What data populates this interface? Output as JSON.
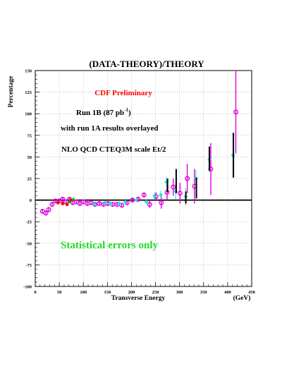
{
  "chart_data": {
    "type": "scatter",
    "title": "(DATA-THEORY)/THEORY",
    "xlabel": "Transverse Energy",
    "xunit": "(GeV)",
    "ylabel": "Percentage",
    "xlim": [
      0,
      450
    ],
    "ylim": [
      -100,
      150
    ],
    "x_ticks": [
      "0",
      "50",
      "100",
      "150",
      "200",
      "250",
      "300",
      "350",
      "400",
      "450"
    ],
    "y_ticks": [
      "150",
      "125",
      "100",
      "75",
      "50",
      "25",
      "0",
      "-25",
      "-50",
      "-75",
      "-100"
    ],
    "grid": true,
    "zero_line": true,
    "annotations": {
      "preliminary": "CDF Preliminary",
      "run_prefix": "Run 1B (87 pb",
      "run_exp": "-1",
      "run_suffix": ")",
      "overlay": "with run 1A results overlayed",
      "theory": "NLO QCD CTEQ3M  scale Et/2",
      "errors": "Statistical errors  only"
    },
    "colors": {
      "run1b": "#000000",
      "run1a": "#dd00dd",
      "cyan_points": "#22dddd",
      "red_points": "#ff0000",
      "green_points": "#00aa00",
      "preliminary_text": "#ff0000",
      "errors_text": "#22dd22"
    },
    "series": [
      {
        "marker": "open-circle",
        "color": "#dd00dd",
        "points": [
          {
            "x": 15,
            "y": -13,
            "err": 2
          },
          {
            "x": 22,
            "y": -15,
            "err": 3
          },
          {
            "x": 28,
            "y": -11,
            "err": 3
          },
          {
            "x": 35,
            "y": -5,
            "err": 2
          },
          {
            "x": 42,
            "y": -1,
            "err": 2
          },
          {
            "x": 50,
            "y": -1,
            "err": 2
          },
          {
            "x": 57,
            "y": 1,
            "err": 2
          },
          {
            "x": 64,
            "y": -2,
            "err": 2
          },
          {
            "x": 71,
            "y": 1,
            "err": 2
          },
          {
            "x": 78,
            "y": -3,
            "err": 2
          },
          {
            "x": 86,
            "y": -2,
            "err": 2
          },
          {
            "x": 93,
            "y": -4,
            "err": 2
          },
          {
            "x": 100,
            "y": -2,
            "err": 2
          },
          {
            "x": 108,
            "y": -4,
            "err": 2
          },
          {
            "x": 116,
            "y": -3,
            "err": 2
          },
          {
            "x": 124,
            "y": -5,
            "err": 2
          },
          {
            "x": 133,
            "y": -4,
            "err": 2
          },
          {
            "x": 142,
            "y": -5,
            "err": 2
          },
          {
            "x": 151,
            "y": -4,
            "err": 2
          },
          {
            "x": 161,
            "y": -5,
            "err": 2
          },
          {
            "x": 170,
            "y": -5,
            "err": 2
          },
          {
            "x": 180,
            "y": -6,
            "err": 2
          },
          {
            "x": 191,
            "y": -3,
            "err": 2
          },
          {
            "x": 202,
            "y": 0,
            "err": 3
          },
          {
            "x": 214,
            "y": 1,
            "err": 3
          },
          {
            "x": 226,
            "y": 6,
            "err": 3
          },
          {
            "x": 238,
            "y": -5,
            "err": 4
          },
          {
            "x": 251,
            "y": 4,
            "err": 5
          },
          {
            "x": 262,
            "y": -3,
            "err": 7
          },
          {
            "x": 274,
            "y": 9,
            "err": 9
          },
          {
            "x": 287,
            "y": 15,
            "err": 10
          },
          {
            "x": 301,
            "y": 8,
            "err": 12
          },
          {
            "x": 316,
            "y": 25,
            "err": 17
          },
          {
            "x": 331,
            "y": 16,
            "err": 20
          },
          {
            "x": 365,
            "y": 36,
            "err": 30
          },
          {
            "x": 417,
            "y": 102,
            "err": 48
          }
        ]
      },
      {
        "marker": "filled-diamond",
        "color": "#22dddd",
        "points": [
          {
            "x": 123,
            "y": -5,
            "err": 2
          },
          {
            "x": 145,
            "y": -3,
            "err": 2
          },
          {
            "x": 157,
            "y": -4,
            "err": 2
          },
          {
            "x": 175,
            "y": -4,
            "err": 2
          },
          {
            "x": 187,
            "y": -2,
            "err": 2
          },
          {
            "x": 210,
            "y": 0,
            "err": 2
          },
          {
            "x": 231,
            "y": -2,
            "err": 3
          },
          {
            "x": 248,
            "y": 5,
            "err": 4
          },
          {
            "x": 261,
            "y": 6,
            "err": 5
          },
          {
            "x": 273,
            "y": 21,
            "err": 6
          },
          {
            "x": 292,
            "y": 10,
            "err": 9
          },
          {
            "x": 313,
            "y": 4,
            "err": 10
          },
          {
            "x": 334,
            "y": 25,
            "err": 10
          },
          {
            "x": 362,
            "y": 47,
            "err": 15
          },
          {
            "x": 411,
            "y": 52,
            "err": 25
          }
        ]
      },
      {
        "marker": "filled-circle",
        "color": "#ff0000",
        "points": [
          {
            "x": 47,
            "y": -3,
            "err": 2
          },
          {
            "x": 57,
            "y": -4,
            "err": 2
          },
          {
            "x": 66,
            "y": -5,
            "err": 2
          },
          {
            "x": 74,
            "y": 0,
            "err": 2
          }
        ]
      },
      {
        "marker": "filled-triangle",
        "color": "#00aa00",
        "points": [
          {
            "x": 71,
            "y": -2,
            "err": 1
          },
          {
            "x": 79,
            "y": 1,
            "err": 1
          }
        ]
      },
      {
        "marker": "errorbar",
        "color": "#000000",
        "points": [
          {
            "x": 275,
            "y": 17,
            "err": 8
          },
          {
            "x": 293,
            "y": 22,
            "err": 14
          },
          {
            "x": 313,
            "y": 3,
            "err": 7
          },
          {
            "x": 335,
            "y": 14,
            "err": 12
          },
          {
            "x": 362,
            "y": 48,
            "err": 14
          },
          {
            "x": 412,
            "y": 52,
            "err": 26
          }
        ]
      }
    ]
  }
}
